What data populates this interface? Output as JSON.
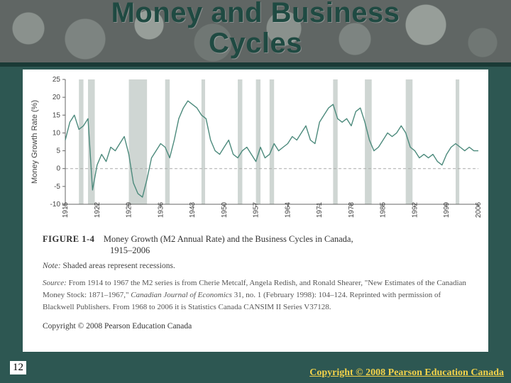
{
  "slide": {
    "title": "Money and Business\nCycles",
    "page_number": "12",
    "footer_copyright": "Copyright © 2008 Pearson Education Canada",
    "background_color": "#2d5752",
    "title_color": "#1f4a42",
    "title_fontsize": 40
  },
  "figure": {
    "label": "FIGURE 1-4",
    "caption_main": "Money Growth (M2 Annual Rate) and the Business Cycles in Canada,",
    "caption_range": "1915–2006",
    "note_label": "Note:",
    "note_text": "Shaded areas represent recessions.",
    "source_label": "Source:",
    "source_text": "From 1914 to 1967 the M2 series is from Cherie Metcalf, Angela Redish, and Ronald Shearer, \"New Estimates of the Canadian Money Stock: 1871–1967,\" Canadian Journal of Economics 31, no. 1 (February 1998): 104–124. Reprinted with permission of Blackwell Publishers. From 1968 to 2006 it is Statistics Canada CANSIM II Series V37128.",
    "inner_copyright": "Copyright © 2008 Pearson Education Canada"
  },
  "chart": {
    "type": "line",
    "ylabel": "Money Growth Rate (%)",
    "ylim": [
      -10,
      25
    ],
    "yticks": [
      -10,
      -5,
      0,
      5,
      10,
      15,
      20,
      25
    ],
    "xlim": [
      1915,
      2006
    ],
    "xticks": [
      1915,
      1922,
      1929,
      1936,
      1943,
      1950,
      1957,
      1964,
      1971,
      1978,
      1985,
      1992,
      1999,
      2006
    ],
    "background_color": "#ffffff",
    "axis_color": "#666666",
    "zero_line_color": "#aaaaaa",
    "line_color": "#4c8a7c",
    "line_width": 1.4,
    "recession_color": "#cfd6d3",
    "axis_label_fontsize": 11,
    "tick_fontsize": 10,
    "recessions": [
      [
        1918,
        1919
      ],
      [
        1920,
        1921.5
      ],
      [
        1929,
        1933
      ],
      [
        1937,
        1938
      ],
      [
        1945,
        1945.8
      ],
      [
        1953,
        1954
      ],
      [
        1957,
        1958
      ],
      [
        1960,
        1961
      ],
      [
        1974,
        1975
      ],
      [
        1981,
        1982.5
      ],
      [
        1990,
        1991.5
      ],
      [
        2001,
        2001.8
      ]
    ],
    "series": [
      [
        1915,
        8
      ],
      [
        1916,
        13
      ],
      [
        1917,
        15
      ],
      [
        1918,
        11
      ],
      [
        1919,
        12
      ],
      [
        1920,
        14
      ],
      [
        1921,
        -6
      ],
      [
        1922,
        1
      ],
      [
        1923,
        4
      ],
      [
        1924,
        2
      ],
      [
        1925,
        6
      ],
      [
        1926,
        5
      ],
      [
        1927,
        7
      ],
      [
        1928,
        9
      ],
      [
        1929,
        4
      ],
      [
        1930,
        -4
      ],
      [
        1931,
        -7
      ],
      [
        1932,
        -8
      ],
      [
        1933,
        -3
      ],
      [
        1934,
        3
      ],
      [
        1935,
        5
      ],
      [
        1936,
        7
      ],
      [
        1937,
        6
      ],
      [
        1938,
        3
      ],
      [
        1939,
        8
      ],
      [
        1940,
        14
      ],
      [
        1941,
        17
      ],
      [
        1942,
        19
      ],
      [
        1943,
        18
      ],
      [
        1944,
        17
      ],
      [
        1945,
        15
      ],
      [
        1946,
        14
      ],
      [
        1947,
        8
      ],
      [
        1948,
        5
      ],
      [
        1949,
        4
      ],
      [
        1950,
        6
      ],
      [
        1951,
        8
      ],
      [
        1952,
        4
      ],
      [
        1953,
        3
      ],
      [
        1954,
        5
      ],
      [
        1955,
        6
      ],
      [
        1956,
        4
      ],
      [
        1957,
        2
      ],
      [
        1958,
        6
      ],
      [
        1959,
        3
      ],
      [
        1960,
        4
      ],
      [
        1961,
        7
      ],
      [
        1962,
        5
      ],
      [
        1963,
        6
      ],
      [
        1964,
        7
      ],
      [
        1965,
        9
      ],
      [
        1966,
        8
      ],
      [
        1967,
        10
      ],
      [
        1968,
        12
      ],
      [
        1969,
        8
      ],
      [
        1970,
        7
      ],
      [
        1971,
        13
      ],
      [
        1972,
        15
      ],
      [
        1973,
        17
      ],
      [
        1974,
        18
      ],
      [
        1975,
        14
      ],
      [
        1976,
        13
      ],
      [
        1977,
        14
      ],
      [
        1978,
        12
      ],
      [
        1979,
        16
      ],
      [
        1980,
        17
      ],
      [
        1981,
        13
      ],
      [
        1982,
        8
      ],
      [
        1983,
        5
      ],
      [
        1984,
        6
      ],
      [
        1985,
        8
      ],
      [
        1986,
        10
      ],
      [
        1987,
        9
      ],
      [
        1988,
        10
      ],
      [
        1989,
        12
      ],
      [
        1990,
        10
      ],
      [
        1991,
        6
      ],
      [
        1992,
        5
      ],
      [
        1993,
        3
      ],
      [
        1994,
        4
      ],
      [
        1995,
        3
      ],
      [
        1996,
        4
      ],
      [
        1997,
        2
      ],
      [
        1998,
        1
      ],
      [
        1999,
        4
      ],
      [
        2000,
        6
      ],
      [
        2001,
        7
      ],
      [
        2002,
        6
      ],
      [
        2003,
        5
      ],
      [
        2004,
        6
      ],
      [
        2005,
        5
      ],
      [
        2006,
        5
      ]
    ]
  }
}
